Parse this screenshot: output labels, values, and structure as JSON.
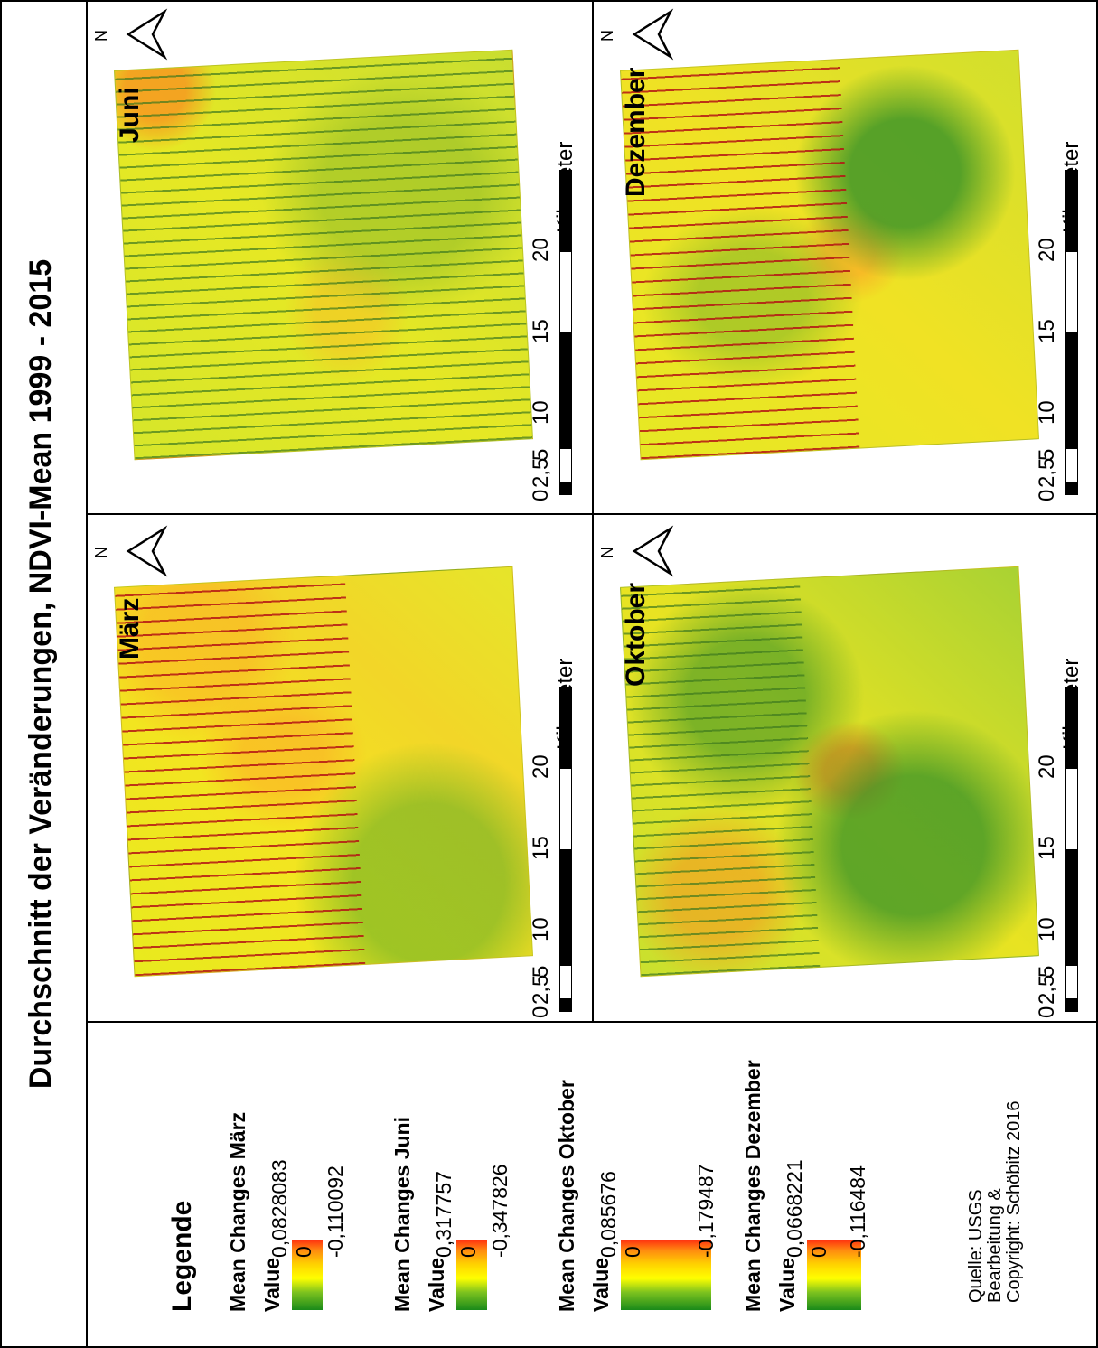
{
  "title": "Durchschnitt der Veränderungen, NDVI-Mean 1999 - 2015",
  "panels": [
    {
      "label": "März"
    },
    {
      "label": "Juni"
    },
    {
      "label": "Oktober"
    },
    {
      "label": "Dezember"
    }
  ],
  "north_label": "N",
  "scalebar": {
    "ticks": [
      "0",
      "2,5",
      "5",
      "10",
      "15",
      "20"
    ],
    "unit": "Kilometer",
    "colors": [
      "#000000",
      "#ffffff",
      "#000000",
      "#000000",
      "#ffffff",
      "#000000"
    ]
  },
  "legend": {
    "title": "Legende",
    "value_label": "Value",
    "entries": [
      {
        "heading": "Mean Changes März",
        "max": "0,0828083",
        "mid": "0",
        "min": "-0,110092"
      },
      {
        "heading": "Mean Changes Juni",
        "max": "0,317757",
        "mid": "0",
        "min": "-0,347826"
      },
      {
        "heading": "Mean Changes Oktober",
        "max": "0,085676",
        "mid": "0",
        "min": "-0,179487"
      },
      {
        "heading": "Mean Changes Dezember",
        "max": "0,0668221",
        "mid": "0",
        "min": "-0,116484"
      }
    ],
    "colors": [
      "#1a8a1a",
      "#7cc21f",
      "#ffff00",
      "#ffd200",
      "#ff8a10",
      "#ff2d10"
    ]
  },
  "source": {
    "line1": "Quelle: USGS",
    "line2": "Bearbeitung &",
    "line3": "Copyright: Schöbitz 2016"
  }
}
